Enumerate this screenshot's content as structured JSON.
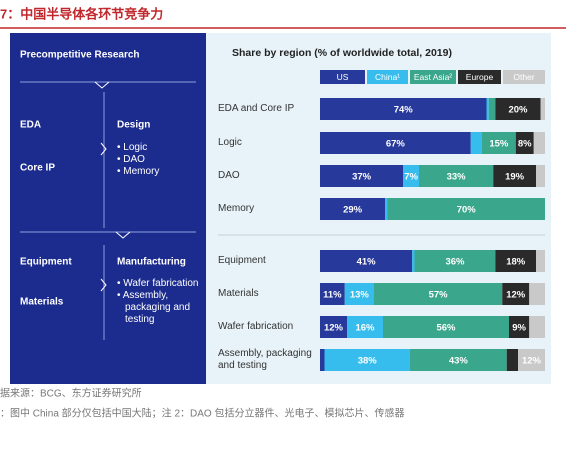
{
  "header": {
    "title": "7：中国半导体各环节竞争力"
  },
  "panel": {
    "research": "Precompetitive Research",
    "design_left": [
      "EDA",
      "Core IP"
    ],
    "design_right": "Design",
    "design_items": [
      "Logic",
      "DAO",
      "Memory"
    ],
    "manuf_left": [
      "Equipment",
      "Materials"
    ],
    "manuf_right": "Manufacturing",
    "manuf_items": [
      "Wafer fabrication",
      "Assembly, packaging and testing"
    ]
  },
  "chart_data": {
    "type": "stacked-bar-horizontal",
    "subtitle": "Share by region (% of worldwide total, 2019)",
    "categories": [
      "EDA and Core IP",
      "Logic",
      "DAO",
      "Memory",
      "Equipment",
      "Materials",
      "Wafer fabrication",
      "Assembly, packaging and testing"
    ],
    "xlim": [
      0,
      100
    ],
    "series": [
      {
        "name": "US",
        "color": "#27399b",
        "values": [
          74,
          67,
          37,
          29,
          41,
          11,
          12,
          2
        ],
        "value_labels": [
          "74%",
          "67%",
          "37%",
          "29%",
          "41%",
          "11%",
          "12%",
          null
        ]
      },
      {
        "name": "China¹",
        "color": "#36bdee",
        "values": [
          1,
          5,
          7,
          1,
          1,
          13,
          16,
          38
        ],
        "value_labels": [
          null,
          null,
          "7%",
          null,
          null,
          "13%",
          "16%",
          "38%"
        ]
      },
      {
        "name": "East Asia²",
        "color": "#3aa68b",
        "values": [
          3,
          15,
          33,
          70,
          36,
          57,
          56,
          43
        ],
        "value_labels": [
          null,
          "15%",
          "33%",
          "70%",
          "36%",
          "57%",
          "56%",
          "43%"
        ]
      },
      {
        "name": "Europe",
        "color": "#2a2a2a",
        "values": [
          20,
          8,
          19,
          0,
          18,
          12,
          9,
          5
        ],
        "value_labels": [
          "20%",
          "8%",
          "19%",
          null,
          "18%",
          "12%",
          "9%",
          null
        ]
      },
      {
        "name": "Other",
        "color": "#c9c9c9",
        "values": [
          2,
          5,
          4,
          0,
          4,
          7,
          7,
          12
        ],
        "value_labels": [
          null,
          null,
          null,
          null,
          null,
          null,
          null,
          "12%"
        ]
      }
    ]
  },
  "footer": {
    "source": "据来源：BCG、东方证券研究所",
    "note": "：图中 China 部分仅包括中国大陆；注 2：DAO 包括分立器件、光电子、模拟芯片、传感器"
  }
}
